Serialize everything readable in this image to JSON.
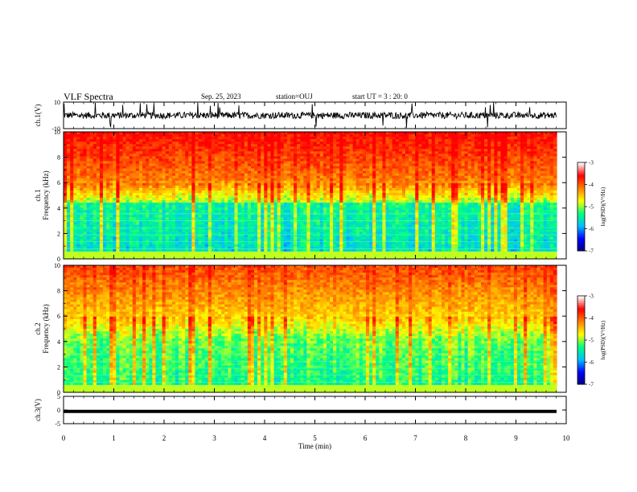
{
  "header": {
    "title": "VLF Spectra",
    "date": "Sep. 25, 2023",
    "station": "station=OUJ",
    "start": "start UT =  3 : 20: 0"
  },
  "chart_data": [
    {
      "type": "line",
      "panel": "ch1-waveform",
      "ylabel": "ch.1(V)",
      "ylim": [
        -10,
        10
      ],
      "yticks": [
        "10",
        "-10"
      ],
      "xlim": [
        0,
        10
      ],
      "xunit": "min"
    },
    {
      "type": "heatmap",
      "panel": "ch1-spectrogram",
      "ylabel_line1": "ch.1",
      "ylabel_line2": "Frequency (kHz)",
      "ylim": [
        0,
        10
      ],
      "yticks": [
        "0",
        "2",
        "4",
        "6",
        "8",
        "10"
      ],
      "xlim": [
        0,
        9.8
      ],
      "colorbar": {
        "label": "log(PSD)(V²/Hz)",
        "range": [
          -7,
          -3
        ],
        "ticks": [
          "-3",
          "-4",
          "-5",
          "-6",
          "-7"
        ],
        "colormap": [
          "#000080",
          "#0000ff",
          "#00bfff",
          "#00ff80",
          "#ffff00",
          "#ff8000",
          "#ff0000",
          "#ffffff"
        ]
      }
    },
    {
      "type": "heatmap",
      "panel": "ch2-spectrogram",
      "ylabel_line1": "ch.2",
      "ylabel_line2": "Frequency (kHz)",
      "ylim": [
        0,
        10
      ],
      "yticks": [
        "0",
        "2",
        "4",
        "6",
        "8",
        "10"
      ],
      "xlim": [
        0,
        9.8
      ],
      "colorbar": {
        "label": "log(PSD)(V²/Hz)",
        "range": [
          -7,
          -3
        ],
        "ticks": [
          "-3",
          "-4",
          "-5",
          "-6",
          "-7"
        ],
        "colormap": [
          "#000080",
          "#0000ff",
          "#00bfff",
          "#00ff80",
          "#ffff00",
          "#ff8000",
          "#ff0000",
          "#ffffff"
        ]
      }
    },
    {
      "type": "line",
      "panel": "ch3-waveform",
      "ylabel": "ch.3(V)",
      "ylim": [
        -5,
        5
      ],
      "yticks": [
        "5",
        "0",
        "-5"
      ],
      "value": -0.5,
      "xlim": [
        0,
        10
      ],
      "xlabel": "Time (min)",
      "xticks": [
        "0",
        "1",
        "2",
        "3",
        "4",
        "5",
        "6",
        "7",
        "8",
        "9",
        "10"
      ]
    }
  ]
}
